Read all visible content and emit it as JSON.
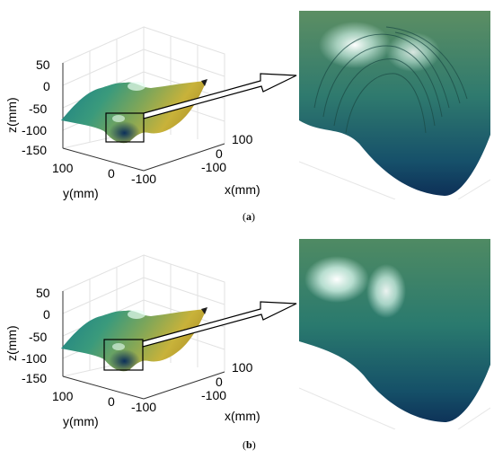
{
  "panels": [
    {
      "id": "a",
      "caption_letter": "a",
      "z_ticks": [
        "50",
        "0",
        "-50",
        "-100",
        "-150"
      ],
      "y_ticks": [
        "100",
        "0",
        "-100"
      ],
      "x_ticks": [
        "100",
        "0",
        "-100"
      ],
      "z_label": "z(mm)",
      "y_label": "y(mm)",
      "x_label": "x(mm)",
      "zoom_has_streaks": true
    },
    {
      "id": "b",
      "caption_letter": "b",
      "z_ticks": [
        "50",
        "0",
        "-50",
        "-100",
        "-150"
      ],
      "y_ticks": [
        "100",
        "0",
        "-100"
      ],
      "x_ticks": [
        "100",
        "0",
        "-100"
      ],
      "z_label": "z(mm)",
      "y_label": "y(mm)",
      "x_label": "x(mm)",
      "zoom_has_streaks": false
    }
  ],
  "colors": {
    "surface_dark": "#0b2f5a",
    "surface_teal": "#1f8a83",
    "surface_green": "#4f9a6a",
    "surface_yellow": "#c8b23a",
    "highlight": "#e8fff4",
    "grid": "#e2e2e2"
  }
}
